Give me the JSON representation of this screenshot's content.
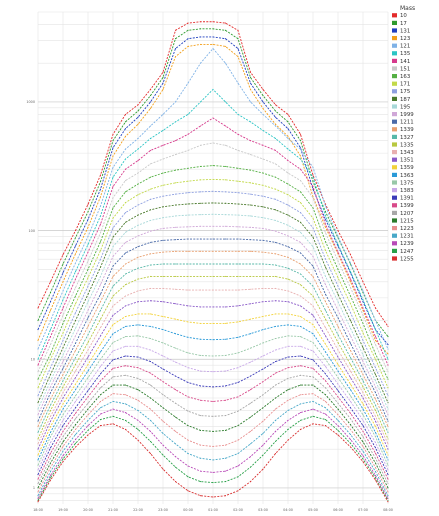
{
  "chart_data": {
    "type": "line",
    "title": "",
    "xlabel": "",
    "ylabel": "",
    "legend": {
      "title": "Mass",
      "placement": "right"
    },
    "y_scale": "log",
    "ylim": [
      0.75,
      5000
    ],
    "grid": true,
    "x_tick_labels": [
      "18:00",
      "19:00",
      "20:00",
      "21:00",
      "22:00",
      "23:00",
      "00:00",
      "01:00",
      "02:00",
      "03:00",
      "04:00",
      "05:00",
      "06:00",
      "07:00",
      "08:00"
    ],
    "y_tick_labels": [
      "1",
      "10",
      "100",
      "1000"
    ],
    "x": [
      0,
      0.5,
      1,
      1.5,
      2,
      2.5,
      3,
      3.5,
      4,
      4.5,
      5,
      5.5,
      6,
      6.5,
      7,
      7.5,
      8,
      8.5,
      9,
      9.5,
      10,
      10.5,
      11,
      11.5,
      12,
      12.5,
      13,
      13.5,
      14
    ],
    "series": [
      {
        "name": "10",
        "color": "#e32b2b",
        "values": [
          25,
          40,
          65,
          100,
          160,
          270,
          560,
          800,
          950,
          1250,
          1700,
          3600,
          4100,
          4200,
          4200,
          4100,
          3600,
          1700,
          1250,
          950,
          800,
          560,
          270,
          160,
          100,
          65,
          40,
          25,
          18
        ]
      },
      {
        "name": "17",
        "color": "#2e9a2e",
        "values": [
          20,
          33,
          55,
          88,
          140,
          240,
          500,
          700,
          850,
          1120,
          1550,
          3100,
          3600,
          3700,
          3700,
          3600,
          3100,
          1550,
          1120,
          850,
          700,
          500,
          240,
          140,
          88,
          55,
          33,
          20,
          15
        ]
      },
      {
        "name": "131",
        "color": "#1f3fbf",
        "values": [
          17,
          28,
          47,
          76,
          122,
          210,
          440,
          620,
          760,
          1000,
          1400,
          2600,
          3100,
          3200,
          3200,
          3100,
          2600,
          1400,
          1000,
          760,
          620,
          440,
          210,
          122,
          76,
          47,
          28,
          17,
          13
        ]
      },
      {
        "name": "123",
        "color": "#f2a01c",
        "values": [
          14,
          24,
          40,
          66,
          106,
          183,
          380,
          540,
          670,
          890,
          1250,
          2250,
          2700,
          2800,
          2800,
          2700,
          2250,
          1250,
          890,
          670,
          540,
          380,
          183,
          106,
          66,
          40,
          24,
          14,
          11
        ]
      },
      {
        "name": "121",
        "color": "#7fb2e6",
        "values": [
          12,
          20,
          34,
          56,
          90,
          155,
          310,
          430,
          520,
          650,
          800,
          1000,
          1400,
          2000,
          2600,
          2000,
          1400,
          1000,
          800,
          650,
          520,
          430,
          310,
          155,
          90,
          56,
          34,
          20,
          12
        ]
      },
      {
        "name": "135",
        "color": "#2bc4c4",
        "values": [
          10,
          17,
          29,
          48,
          78,
          130,
          260,
          360,
          430,
          520,
          600,
          700,
          800,
          1000,
          1250,
          1000,
          800,
          700,
          600,
          520,
          430,
          360,
          260,
          130,
          78,
          48,
          29,
          17,
          10
        ]
      },
      {
        "name": "141",
        "color": "#d63a8c",
        "values": [
          9,
          15,
          25,
          42,
          68,
          112,
          220,
          300,
          350,
          420,
          460,
          500,
          560,
          650,
          750,
          650,
          560,
          500,
          460,
          420,
          350,
          300,
          220,
          112,
          68,
          42,
          25,
          15,
          9
        ]
      },
      {
        "name": "151",
        "color": "#c9c9c9",
        "values": [
          8,
          13,
          22,
          36,
          58,
          96,
          180,
          245,
          280,
          330,
          360,
          390,
          420,
          460,
          480,
          460,
          420,
          390,
          360,
          330,
          280,
          245,
          180,
          96,
          58,
          36,
          22,
          13,
          8
        ]
      },
      {
        "name": "163",
        "color": "#55b044",
        "values": [
          7,
          11,
          19,
          31,
          50,
          82,
          150,
          200,
          230,
          260,
          280,
          295,
          305,
          315,
          320,
          315,
          305,
          295,
          280,
          260,
          230,
          200,
          150,
          82,
          50,
          31,
          19,
          11,
          7
        ]
      },
      {
        "name": "171",
        "color": "#c2d94a",
        "values": [
          6,
          10,
          16,
          27,
          43,
          70,
          125,
          165,
          190,
          210,
          225,
          235,
          242,
          248,
          250,
          248,
          242,
          235,
          225,
          210,
          190,
          165,
          125,
          70,
          43,
          27,
          16,
          10,
          6
        ]
      },
      {
        "name": "175",
        "color": "#8fa0e0",
        "values": [
          5.2,
          8.6,
          14,
          23,
          37,
          60,
          105,
          138,
          158,
          175,
          185,
          192,
          197,
          200,
          202,
          200,
          197,
          192,
          185,
          175,
          158,
          138,
          105,
          60,
          37,
          23,
          14,
          8.6,
          5.2
        ]
      },
      {
        "name": "187",
        "color": "#4a7a2c",
        "values": [
          4.6,
          7.6,
          12.3,
          20,
          32,
          52,
          89,
          116,
          132,
          145,
          153,
          158,
          161,
          163,
          164,
          163,
          161,
          158,
          153,
          145,
          132,
          116,
          89,
          52,
          32,
          20,
          12.3,
          7.6,
          4.6
        ]
      },
      {
        "name": "195",
        "color": "#a8d8d8",
        "values": [
          4.1,
          6.8,
          10.8,
          17.4,
          28,
          44,
          75,
          97,
          110,
          120,
          126,
          130,
          132,
          133,
          134,
          133,
          132,
          130,
          126,
          120,
          110,
          97,
          75,
          44,
          28,
          17.4,
          10.8,
          6.8,
          4.1
        ]
      },
      {
        "name": "1999",
        "color": "#d0a8d8",
        "values": [
          3.7,
          6.1,
          9.6,
          15.2,
          24,
          38,
          63,
          81,
          91,
          99,
          104,
          106,
          107,
          108,
          108,
          108,
          107,
          106,
          104,
          99,
          91,
          81,
          63,
          38,
          24,
          15.2,
          9.6,
          6.1,
          3.7
        ]
      },
      {
        "name": "1211",
        "color": "#4a6aa8",
        "values": [
          3.3,
          5.5,
          8.5,
          13.3,
          21,
          32,
          53,
          67,
          75,
          81,
          84,
          85,
          86,
          86,
          86,
          86,
          86,
          85,
          84,
          81,
          75,
          67,
          53,
          32,
          21,
          13.3,
          8.5,
          5.5,
          3.3
        ]
      },
      {
        "name": "1339",
        "color": "#e8a070",
        "values": [
          3.0,
          4.9,
          7.6,
          11.7,
          18,
          28,
          44,
          55,
          62,
          66,
          68,
          69,
          69,
          69,
          69,
          69,
          69,
          69,
          68,
          66,
          62,
          55,
          44,
          28,
          18,
          11.7,
          7.6,
          4.9,
          3.0
        ]
      },
      {
        "name": "1327",
        "color": "#58b8a8",
        "values": [
          2.7,
          4.4,
          6.8,
          10.3,
          15.5,
          24,
          37,
          46,
          51,
          54,
          55,
          55,
          55,
          55,
          55,
          55,
          55,
          55,
          55,
          54,
          51,
          46,
          37,
          24,
          15.5,
          10.3,
          6.8,
          4.4,
          2.7
        ]
      },
      {
        "name": "1335",
        "color": "#b8c840",
        "values": [
          2.4,
          4.0,
          6.1,
          9.1,
          13.5,
          20.5,
          31,
          38,
          42,
          44,
          44,
          44,
          44,
          44,
          44,
          44,
          44,
          44,
          44,
          44,
          42,
          38,
          31,
          20.5,
          13.5,
          9.1,
          6.1,
          4.0,
          2.4
        ]
      },
      {
        "name": "1343",
        "color": "#e8b0b0",
        "values": [
          2.2,
          3.6,
          5.5,
          8.1,
          11.8,
          17.6,
          26,
          31,
          34,
          35.5,
          35.5,
          35,
          34.5,
          34.5,
          34.5,
          34.5,
          34.5,
          35,
          35.5,
          35.5,
          34,
          31,
          26,
          17.6,
          11.8,
          8.1,
          5.5,
          3.6,
          2.2
        ]
      },
      {
        "name": "1351",
        "color": "#8a5ac8",
        "values": [
          2.0,
          3.3,
          5.0,
          7.2,
          10.4,
          15.2,
          22,
          26,
          28,
          28.5,
          28,
          27,
          26,
          25.5,
          25.5,
          25.5,
          26,
          27,
          28,
          28.5,
          28,
          26,
          22,
          15.2,
          10.4,
          7.2,
          5.0,
          3.3,
          2.0
        ]
      },
      {
        "name": "1359",
        "color": "#f2d23a",
        "values": [
          1.8,
          3.0,
          4.5,
          6.4,
          9.1,
          13.1,
          18.6,
          21.5,
          22.5,
          22.5,
          21.5,
          20.5,
          19.5,
          19,
          19,
          19,
          19.5,
          20.5,
          21.5,
          22.5,
          22.5,
          21.5,
          18.6,
          13.1,
          9.1,
          6.4,
          4.5,
          3.0,
          1.8
        ]
      },
      {
        "name": "1363",
        "color": "#2a9ad8",
        "values": [
          1.65,
          2.7,
          4.1,
          5.8,
          8.1,
          11.4,
          15.8,
          18,
          18.5,
          18,
          17,
          15.8,
          14.8,
          14.3,
          14.2,
          14.3,
          14.8,
          15.8,
          17,
          18,
          18.5,
          18,
          15.8,
          11.4,
          8.1,
          5.8,
          4.1,
          2.7,
          1.65
        ]
      },
      {
        "name": "1375",
        "color": "#98c8a8",
        "values": [
          1.5,
          2.5,
          3.7,
          5.2,
          7.2,
          10,
          13.5,
          15,
          15.2,
          14.5,
          13.4,
          12.2,
          11.2,
          10.7,
          10.6,
          10.7,
          11.2,
          12.2,
          13.4,
          14.5,
          15.2,
          15,
          13.5,
          10,
          7.2,
          5.2,
          3.7,
          2.5,
          1.5
        ]
      },
      {
        "name": "1383",
        "color": "#c8a8e8",
        "values": [
          1.38,
          2.25,
          3.35,
          4.7,
          6.4,
          8.8,
          11.6,
          12.6,
          12.6,
          11.8,
          10.6,
          9.5,
          8.6,
          8.1,
          8.0,
          8.1,
          8.6,
          9.5,
          10.6,
          11.8,
          12.6,
          12.6,
          11.6,
          8.8,
          6.4,
          4.7,
          3.35,
          2.25,
          1.38
        ]
      },
      {
        "name": "1391",
        "color": "#3a3ab8",
        "values": [
          1.27,
          2.05,
          3.05,
          4.2,
          5.7,
          7.7,
          9.9,
          10.6,
          10.4,
          9.6,
          8.4,
          7.4,
          6.6,
          6.2,
          6.1,
          6.2,
          6.6,
          7.4,
          8.4,
          9.6,
          10.4,
          10.6,
          9.9,
          7.7,
          5.7,
          4.2,
          3.05,
          2.05,
          1.27
        ]
      },
      {
        "name": "1399",
        "color": "#d84a8a",
        "values": [
          1.17,
          1.86,
          2.75,
          3.8,
          5.1,
          6.8,
          8.5,
          8.9,
          8.6,
          7.8,
          6.7,
          5.8,
          5.1,
          4.8,
          4.7,
          4.8,
          5.1,
          5.8,
          6.7,
          7.8,
          8.6,
          8.9,
          8.5,
          6.8,
          5.1,
          3.8,
          2.75,
          1.86,
          1.17
        ]
      },
      {
        "name": "1207",
        "color": "#a8a8a8",
        "values": [
          1.08,
          1.7,
          2.5,
          3.45,
          4.55,
          6.0,
          7.3,
          7.5,
          7.1,
          6.3,
          5.3,
          4.55,
          3.95,
          3.65,
          3.6,
          3.65,
          3.95,
          4.55,
          5.3,
          6.3,
          7.1,
          7.5,
          7.3,
          6.0,
          4.55,
          3.45,
          2.5,
          1.7,
          1.08
        ]
      },
      {
        "name": "1215",
        "color": "#2a7a2a",
        "values": [
          1.0,
          1.56,
          2.28,
          3.1,
          4.1,
          5.3,
          6.3,
          6.3,
          5.8,
          5.0,
          4.2,
          3.55,
          3.05,
          2.8,
          2.75,
          2.8,
          3.05,
          3.55,
          4.2,
          5.0,
          5.8,
          6.3,
          6.3,
          5.3,
          4.1,
          3.1,
          2.28,
          1.56,
          1.0
        ]
      },
      {
        "name": "1223",
        "color": "#e89090",
        "values": [
          0.93,
          1.44,
          2.1,
          2.85,
          3.7,
          4.7,
          5.4,
          5.3,
          4.8,
          4.1,
          3.3,
          2.75,
          2.35,
          2.15,
          2.1,
          2.15,
          2.35,
          2.75,
          3.3,
          4.1,
          4.8,
          5.3,
          5.4,
          4.7,
          3.7,
          2.85,
          2.1,
          1.44,
          0.93
        ]
      },
      {
        "name": "1231",
        "color": "#48a8c8",
        "values": [
          0.87,
          1.34,
          1.93,
          2.6,
          3.35,
          4.2,
          4.7,
          4.5,
          4.0,
          3.35,
          2.65,
          2.2,
          1.85,
          1.7,
          1.65,
          1.7,
          1.85,
          2.2,
          2.65,
          3.35,
          4.0,
          4.5,
          4.7,
          4.2,
          3.35,
          2.6,
          1.93,
          1.34,
          0.87
        ]
      },
      {
        "name": "1239",
        "color": "#b84ab8",
        "values": [
          0.83,
          1.25,
          1.78,
          2.38,
          3.05,
          3.75,
          4.1,
          3.85,
          3.35,
          2.75,
          2.15,
          1.75,
          1.48,
          1.35,
          1.32,
          1.35,
          1.48,
          1.75,
          2.15,
          2.75,
          3.35,
          3.85,
          4.1,
          3.75,
          3.05,
          2.38,
          1.78,
          1.25,
          0.83
        ]
      },
      {
        "name": "1247",
        "color": "#28a048",
        "values": [
          0.8,
          1.2,
          1.68,
          2.22,
          2.8,
          3.4,
          3.6,
          3.35,
          2.85,
          2.3,
          1.8,
          1.45,
          1.22,
          1.12,
          1.1,
          1.12,
          1.22,
          1.45,
          1.8,
          2.3,
          2.85,
          3.35,
          3.6,
          3.4,
          2.8,
          2.22,
          1.68,
          1.2,
          0.8
        ]
      },
      {
        "name": "1255",
        "color": "#d83030",
        "values": [
          0.78,
          1.15,
          1.6,
          2.08,
          2.58,
          3.05,
          3.15,
          2.85,
          2.35,
          1.85,
          1.4,
          1.12,
          0.95,
          0.87,
          0.85,
          0.87,
          0.95,
          1.12,
          1.4,
          1.85,
          2.35,
          2.85,
          3.15,
          3.05,
          2.58,
          2.08,
          1.6,
          1.15,
          0.78
        ]
      }
    ]
  }
}
